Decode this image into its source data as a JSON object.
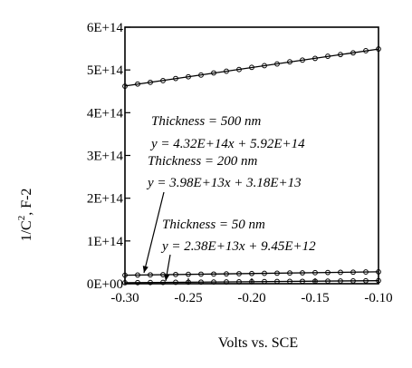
{
  "chart_data": {
    "type": "scatter",
    "title": "",
    "xlabel": "Volts vs. SCE",
    "ylabel_main": "1/C",
    "ylabel_sup": "2",
    "ylabel_rest": ", F-2",
    "xlim": [
      -0.3,
      -0.1
    ],
    "ylim": [
      0,
      600000000000000.0
    ],
    "x_ticks": [
      -0.3,
      -0.25,
      -0.2,
      -0.15,
      -0.1
    ],
    "x_tick_labels": [
      "-0.30",
      "-0.25",
      "-0.20",
      "-0.15",
      "-0.10"
    ],
    "y_ticks": [
      0,
      100000000000000.0,
      200000000000000.0,
      300000000000000.0,
      400000000000000.0,
      500000000000000.0,
      600000000000000.0
    ],
    "y_tick_labels": [
      "0E+00",
      "1E+14",
      "2E+14",
      "3E+14",
      "4E+14",
      "5E+14",
      "6E+14"
    ],
    "grid": false,
    "series": [
      {
        "name": "Thickness = 500 nm",
        "equation": "y = 4.32E+14x + 5.92E+14",
        "slope": 432000000000000.0,
        "intercept": 592000000000000.0,
        "x": [
          -0.3,
          -0.29,
          -0.28,
          -0.27,
          -0.26,
          -0.25,
          -0.24,
          -0.23,
          -0.22,
          -0.21,
          -0.2,
          -0.19,
          -0.18,
          -0.17,
          -0.16,
          -0.15,
          -0.14,
          -0.13,
          -0.12,
          -0.11,
          -0.1
        ],
        "y": [
          462000000000000.0,
          467000000000000.0,
          471000000000000.0,
          475000000000000.0,
          480000000000000.0,
          484000000000000.0,
          488000000000000.0,
          493000000000000.0,
          497000000000000.0,
          501000000000000.0,
          506000000000000.0,
          510000000000000.0,
          514000000000000.0,
          519000000000000.0,
          523000000000000.0,
          527000000000000.0,
          532000000000000.0,
          536000000000000.0,
          540000000000000.0,
          545000000000000.0,
          549000000000000.0
        ]
      },
      {
        "name": "Thickness = 200 nm",
        "equation": "y = 3.98E+13x + 3.18E+13",
        "slope": 39800000000000.0,
        "intercept": 31800000000000.0,
        "x": [
          -0.3,
          -0.29,
          -0.28,
          -0.27,
          -0.26,
          -0.25,
          -0.24,
          -0.23,
          -0.22,
          -0.21,
          -0.2,
          -0.19,
          -0.18,
          -0.17,
          -0.16,
          -0.15,
          -0.14,
          -0.13,
          -0.12,
          -0.11,
          -0.1
        ],
        "y": [
          19900000000000.0,
          20300000000000.0,
          20700000000000.0,
          21100000000000.0,
          21500000000000.0,
          21900000000000.0,
          22300000000000.0,
          22600000000000.0,
          23000000000000.0,
          23400000000000.0,
          23800000000000.0,
          24200000000000.0,
          24600000000000.0,
          25000000000000.0,
          25400000000000.0,
          25800000000000.0,
          26200000000000.0,
          26600000000000.0,
          27000000000000.0,
          27400000000000.0,
          27800000000000.0
        ]
      },
      {
        "name": "Thickness = 50 nm",
        "equation": "y = 2.38E+13x + 9.45E+12",
        "slope": 23800000000000.0,
        "intercept": 9450000000000.0,
        "x": [
          -0.3,
          -0.29,
          -0.28,
          -0.27,
          -0.26,
          -0.25,
          -0.24,
          -0.23,
          -0.22,
          -0.21,
          -0.2,
          -0.19,
          -0.18,
          -0.17,
          -0.16,
          -0.15,
          -0.14,
          -0.13,
          -0.12,
          -0.11,
          -0.1
        ],
        "y": [
          2310000000000.0,
          2550000000000.0,
          2790000000000.0,
          3020000000000.0,
          3260000000000.0,
          3500000000000.0,
          3740000000000.0,
          3980000000000.0,
          4210000000000.0,
          4450000000000.0,
          4690000000000.0,
          4930000000000.0,
          5170000000000.0,
          5400000000000.0,
          5640000000000.0,
          5880000000000.0,
          6120000000000.0,
          6360000000000.0,
          6590000000000.0,
          6830000000000.0,
          7070000000000.0
        ]
      }
    ]
  }
}
